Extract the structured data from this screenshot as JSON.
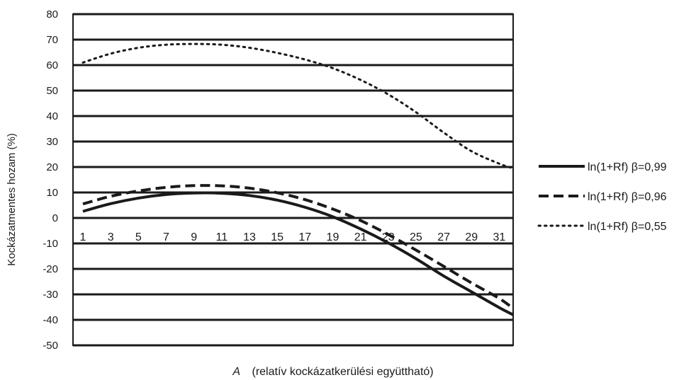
{
  "chart_data": {
    "type": "line",
    "title": "",
    "xlabel_italic": "A",
    "xlabel_rest": "(relatív kockázatkerülési együttható)",
    "ylabel": "Kockázatmentes hozam (%)",
    "ylim": [
      -50,
      80
    ],
    "yticks": [
      80,
      70,
      60,
      50,
      40,
      30,
      20,
      10,
      0,
      -10,
      -20,
      -30,
      -40,
      -50
    ],
    "yticks_labels": [
      "80",
      "70",
      "60",
      "50",
      "40",
      "30",
      "20",
      "10",
      "0",
      "-10",
      "-20",
      "-30",
      "-40",
      "-50"
    ],
    "xlim": [
      1,
      32
    ],
    "xticks": [
      1,
      3,
      5,
      7,
      9,
      11,
      13,
      15,
      17,
      19,
      21,
      23,
      25,
      27,
      29,
      31
    ],
    "xticks_labels": [
      "1",
      "3",
      "5",
      "7",
      "9",
      "11",
      "13",
      "15",
      "17",
      "19",
      "21",
      "23",
      "25",
      "27",
      "29",
      "31"
    ],
    "grid": "horizontal",
    "legend_position": "right",
    "x": [
      1,
      3,
      5,
      7,
      9,
      11,
      13,
      15,
      17,
      19,
      21,
      23,
      25,
      27,
      29,
      31,
      32
    ],
    "series": [
      {
        "name": "ln(1+Rf) β=0,99",
        "style": "solid",
        "values": [
          2.6,
          5.6,
          7.8,
          9.2,
          9.8,
          9.7,
          8.8,
          7.0,
          4.2,
          0.5,
          -4.3,
          -9.8,
          -16.0,
          -22.8,
          -29.0,
          -35.2,
          -38.0
        ]
      },
      {
        "name": "ln(1+Rf) β=0,96",
        "style": "dashed",
        "values": [
          5.5,
          8.5,
          10.6,
          12.0,
          12.7,
          12.6,
          11.7,
          9.9,
          7.2,
          3.5,
          -1.0,
          -6.5,
          -12.6,
          -19.0,
          -25.5,
          -31.6,
          -35.5
        ]
      },
      {
        "name": "ln(1+Rf) β=0,55",
        "style": "dotted",
        "values": [
          61.0,
          64.5,
          66.8,
          68.0,
          68.3,
          68.0,
          66.8,
          64.8,
          62.2,
          58.8,
          54.2,
          48.5,
          41.5,
          33.5,
          26.2,
          21.3,
          19.5
        ]
      }
    ],
    "series_color": "#1a1a1a"
  }
}
